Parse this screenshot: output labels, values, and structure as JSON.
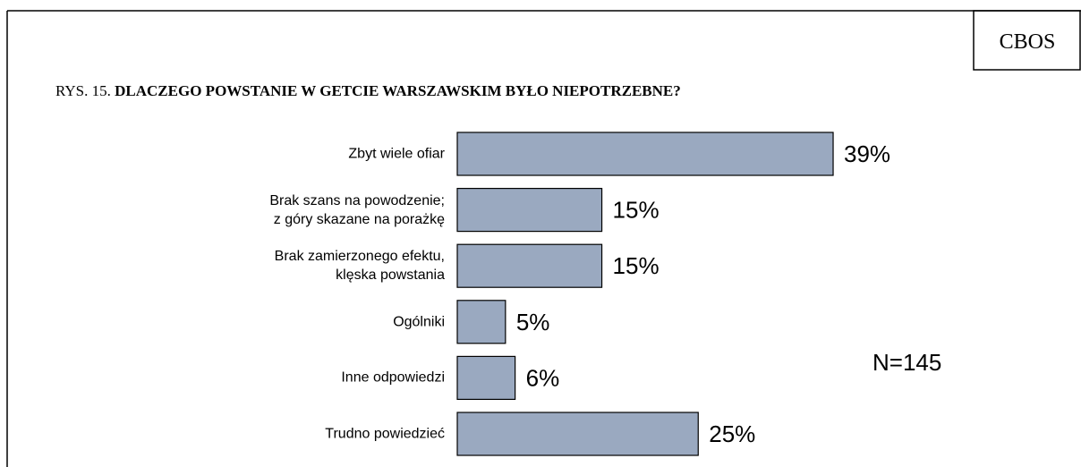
{
  "chart_data": {
    "type": "barh",
    "source": "CBOS",
    "figure_label": "RYS. 15.",
    "title": "DLACZEGO POWSTANIE W GETCIE WARSZAWSKIM BYŁO NIEPOTRZEBNE?",
    "categories": [
      "Zbyt wiele ofiar",
      "Brak szans na powodzenie;\nz góry skazane na porażkę",
      "Brak zamierzonego efektu,\nklęska powstania",
      "Ogólniki",
      "Inne odpowiedzi",
      "Trudno powiedzieć"
    ],
    "values": [
      39,
      15,
      15,
      5,
      6,
      25
    ],
    "value_labels": [
      "39%",
      "15%",
      "15%",
      "5%",
      "6%",
      "25%"
    ],
    "color": "#9aa9c0",
    "annotation": "N=145"
  }
}
